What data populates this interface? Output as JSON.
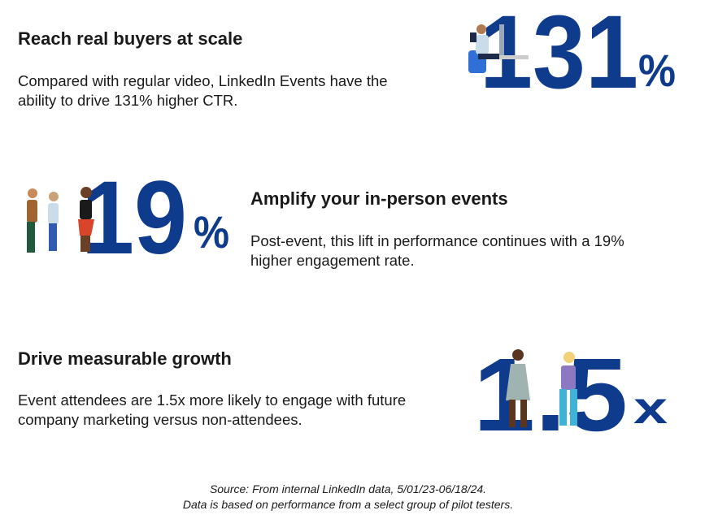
{
  "sections": [
    {
      "title": "Reach real buyers at scale",
      "body": [
        "Compared with regular video, LinkedIn Events have the",
        "ability to drive 131% higher CTR."
      ],
      "stat": "131",
      "unit": "%"
    },
    {
      "title": "Amplify your in-person events",
      "body": [
        "Post-event, this lift in performance continues with a 19%",
        "higher engagement rate."
      ],
      "stat": "19",
      "unit": "%"
    },
    {
      "title": "Drive measurable growth",
      "body": [
        "Event attendees are 1.5x more likely to engage with future",
        "company marketing versus non-attendees."
      ],
      "stat": "1.5",
      "unit": "x"
    }
  ],
  "source": [
    "Source: From internal LinkedIn data, 5/01/23-06/18/24.",
    "Data is based on performance from a select group of pilot testers."
  ]
}
